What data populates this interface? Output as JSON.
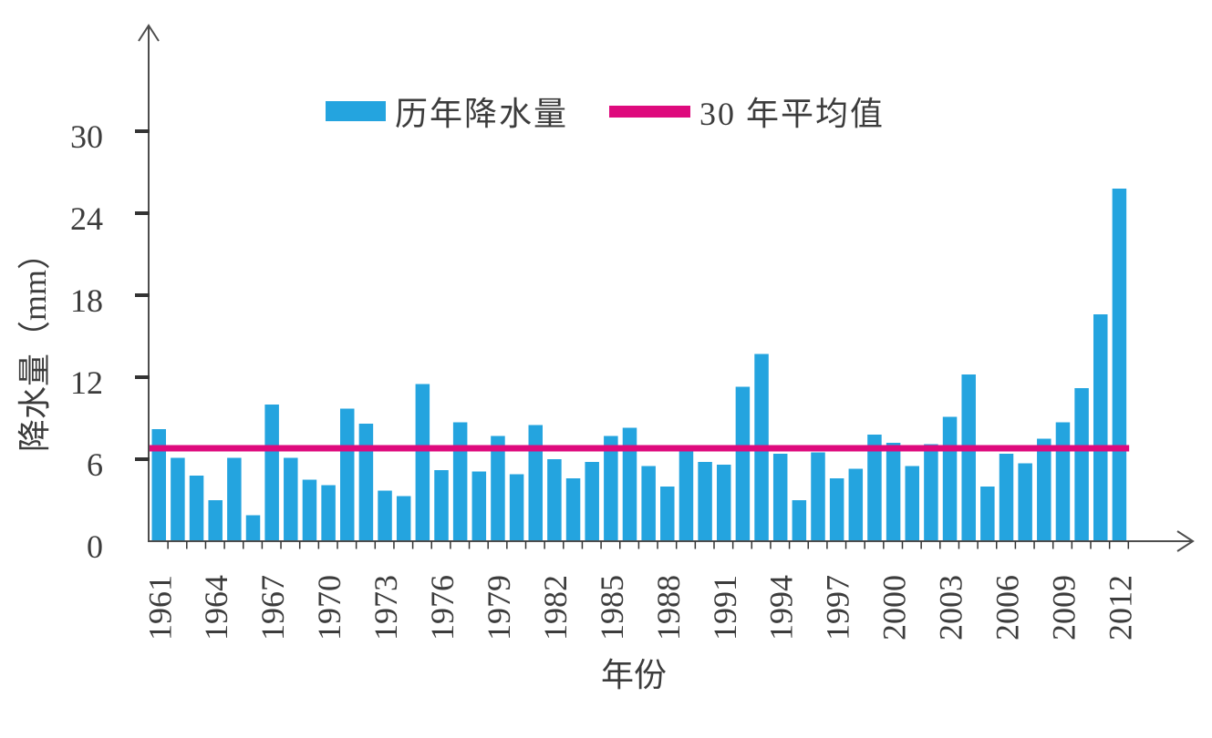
{
  "chart_data": {
    "type": "bar",
    "title": "",
    "xlabel": "年份",
    "ylabel": "降水量（mm）",
    "categories": [
      1961,
      1962,
      1963,
      1964,
      1965,
      1966,
      1967,
      1968,
      1969,
      1970,
      1971,
      1972,
      1973,
      1974,
      1975,
      1976,
      1977,
      1978,
      1979,
      1980,
      1981,
      1982,
      1983,
      1984,
      1985,
      1986,
      1987,
      1988,
      1989,
      1990,
      1991,
      1992,
      1993,
      1994,
      1995,
      1996,
      1997,
      1998,
      1999,
      2000,
      2001,
      2002,
      2003,
      2004,
      2005,
      2006,
      2007,
      2008,
      2009,
      2010,
      2011,
      2012
    ],
    "series": [
      {
        "name": "历年降水量",
        "values": [
          8.2,
          6.1,
          4.8,
          3.0,
          6.1,
          1.9,
          10.0,
          6.1,
          4.5,
          4.1,
          9.7,
          8.6,
          3.7,
          3.3,
          11.5,
          5.2,
          8.7,
          5.1,
          7.7,
          4.9,
          8.5,
          6.0,
          4.6,
          5.8,
          7.7,
          8.3,
          5.5,
          4.0,
          6.7,
          5.8,
          5.6,
          11.3,
          13.7,
          6.4,
          3.0,
          6.5,
          4.6,
          5.3,
          7.8,
          7.2,
          5.5,
          7.1,
          9.1,
          12.2,
          4.0,
          6.4,
          5.7,
          7.5,
          8.7,
          11.2,
          16.6,
          25.8
        ]
      }
    ],
    "average_line": {
      "label": "30 年平均值",
      "value": 6.8
    },
    "x_tick_labels": [
      "1961",
      "1964",
      "1967",
      "1970",
      "1973",
      "1976",
      "1979",
      "1982",
      "1985",
      "1988",
      "1991",
      "1994",
      "1997",
      "2000",
      "2003",
      "2006",
      "2009",
      "2012"
    ],
    "y_ticks": [
      0,
      6,
      12,
      18,
      24,
      30
    ],
    "ylim": [
      0,
      33
    ],
    "grid": false,
    "legend_position": "top",
    "colors": {
      "bar": "#24A4DF",
      "average_line": "#DE0A7D",
      "axis": "#4D4D4D",
      "tick": "#333333",
      "text": "#3C3C3C"
    }
  }
}
